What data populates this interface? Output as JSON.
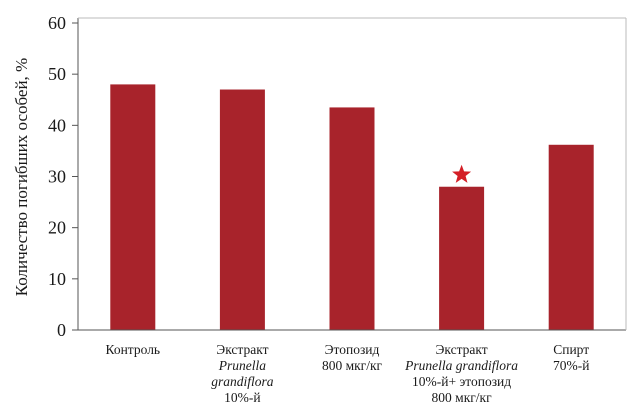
{
  "chart_data": {
    "type": "bar",
    "title": "",
    "xlabel": "",
    "ylabel": "Количество погибших особей, %",
    "ylim": [
      0,
      60
    ],
    "yticks": [
      0,
      10,
      20,
      30,
      40,
      50,
      60
    ],
    "grid": false,
    "bar_color": "#A8232B",
    "marker_color": "#D41F26",
    "categories": [
      "Контроль",
      "Экстракт Prunella grandiflora 10%-й",
      "Этопозид 800 мкг/кг",
      "Экстракт Prunella grandiflora 10%-й+ этопозид 800 мкг/кг",
      "Спирт 70%-й"
    ],
    "category_lines": [
      [
        {
          "t": "Контроль",
          "i": false
        }
      ],
      [
        {
          "t": "Экстракт",
          "i": false
        },
        {
          "t": "Prunella",
          "i": true
        },
        {
          "t": "grandiflora",
          "i": true
        },
        {
          "t": "10%-й",
          "i": false
        }
      ],
      [
        {
          "t": "Этопозид",
          "i": false
        },
        {
          "t": "800 мкг/кг",
          "i": false
        }
      ],
      [
        {
          "t": "Экстракт",
          "i": false
        },
        {
          "t": "Prunella grandiflora",
          "i": true
        },
        {
          "t": "10%-й+ этопозид",
          "i": false
        },
        {
          "t": "800 мкг/кг",
          "i": false
        }
      ],
      [
        {
          "t": "Спирт",
          "i": false
        },
        {
          "t": "70%-й",
          "i": false
        }
      ]
    ],
    "values": [
      48,
      47,
      43.5,
      28,
      36.2
    ],
    "significance_marker": [
      false,
      false,
      false,
      true,
      false
    ]
  }
}
